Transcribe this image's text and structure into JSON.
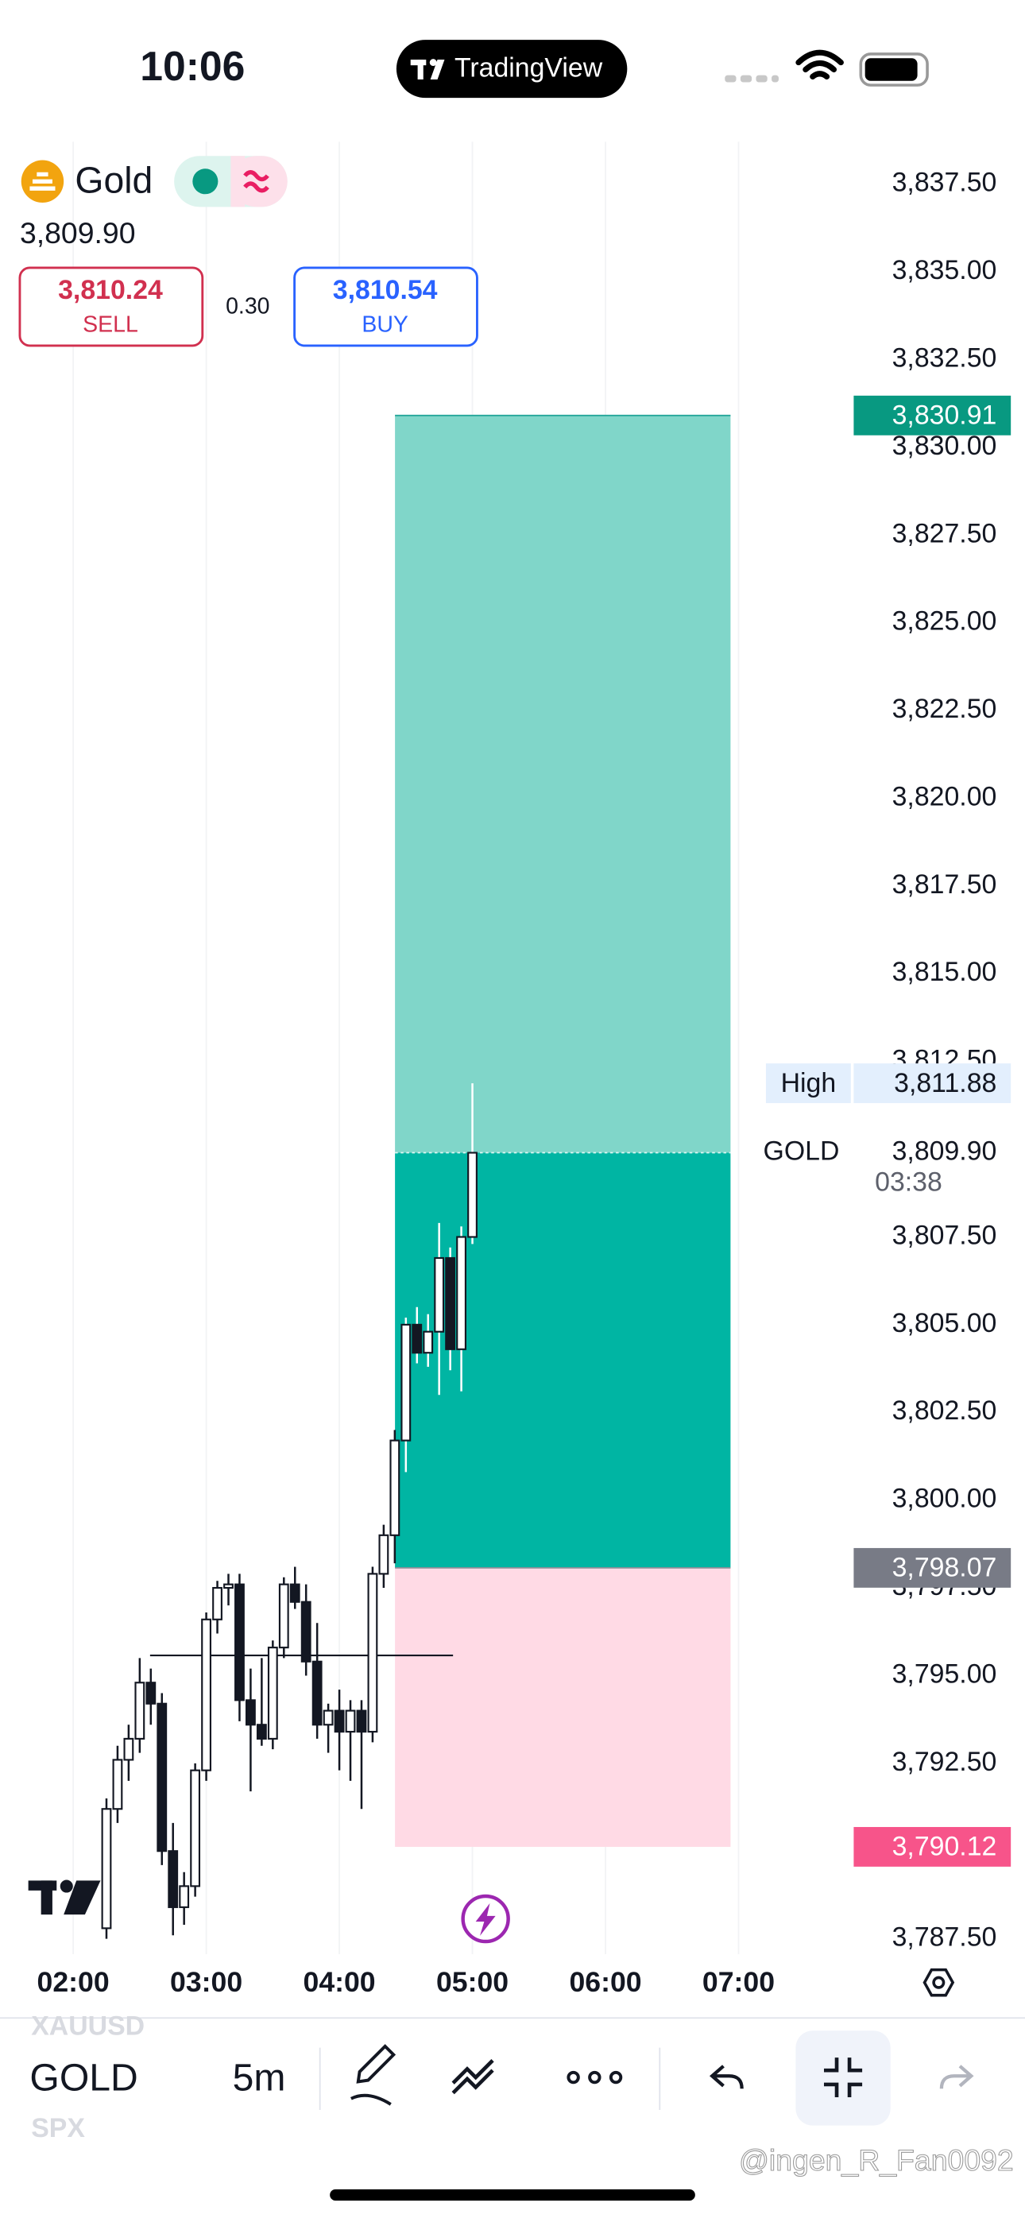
{
  "status_bar": {
    "time": "10:06",
    "app": "TradingView"
  },
  "header": {
    "symbol": "Gold",
    "last_price": "3,809.90",
    "sell": {
      "price": "3,810.24",
      "label": "SELL"
    },
    "spread": "0.30",
    "buy": {
      "price": "3,810.54",
      "label": "BUY"
    }
  },
  "chart_data": {
    "type": "candlestick",
    "x": [
      "02:15",
      "02:20",
      "02:25",
      "02:30",
      "02:35",
      "02:40",
      "02:45",
      "02:50",
      "02:55",
      "03:00",
      "03:05",
      "03:10",
      "03:15",
      "03:20",
      "03:25",
      "03:30",
      "03:35",
      "03:40",
      "03:45",
      "03:50",
      "03:55",
      "04:00",
      "04:05",
      "04:10",
      "04:15",
      "04:20",
      "04:25",
      "04:30",
      "04:35",
      "04:40",
      "04:45",
      "04:50",
      "04:55",
      "05:00"
    ],
    "open": [
      3787.8,
      3791.2,
      3792.6,
      3793.2,
      3794.8,
      3794.2,
      3790.0,
      3788.4,
      3789.0,
      3792.3,
      3796.6,
      3797.5,
      3797.6,
      3794.3,
      3793.6,
      3793.2,
      3795.8,
      3797.6,
      3797.1,
      3795.4,
      3793.6,
      3794.0,
      3793.4,
      3794.0,
      3793.4,
      3797.9,
      3799.0,
      3801.7,
      3805.0,
      3804.2,
      3804.8,
      3806.9,
      3804.3,
      3807.5
    ],
    "high": [
      3791.5,
      3793.0,
      3793.6,
      3795.5,
      3795.2,
      3794.5,
      3790.8,
      3789.4,
      3792.5,
      3796.8,
      3797.7,
      3797.9,
      3797.9,
      3795.2,
      3795.5,
      3796.0,
      3797.8,
      3798.1,
      3797.6,
      3796.5,
      3794.2,
      3794.6,
      3794.3,
      3794.3,
      3798.1,
      3799.3,
      3802.0,
      3805.2,
      3805.5,
      3805.3,
      3807.9,
      3807.2,
      3807.8,
      3811.88
    ],
    "low": [
      3787.5,
      3790.8,
      3792.0,
      3792.8,
      3793.6,
      3789.6,
      3787.6,
      3787.9,
      3788.7,
      3792.0,
      3796.2,
      3797.0,
      3793.7,
      3791.7,
      3793.0,
      3792.9,
      3795.5,
      3796.9,
      3795.0,
      3793.2,
      3792.8,
      3792.3,
      3792.0,
      3791.2,
      3793.1,
      3797.5,
      3798.2,
      3800.8,
      3803.9,
      3803.8,
      3803.0,
      3803.7,
      3803.1,
      3807.3
    ],
    "close": [
      3791.2,
      3792.6,
      3793.2,
      3794.8,
      3794.2,
      3790.0,
      3788.4,
      3789.0,
      3792.3,
      3796.6,
      3797.5,
      3797.6,
      3794.3,
      3793.6,
      3793.2,
      3795.8,
      3797.6,
      3797.1,
      3795.4,
      3793.6,
      3794.0,
      3793.4,
      3794.0,
      3793.4,
      3797.9,
      3799.0,
      3801.7,
      3805.0,
      3804.2,
      3804.8,
      3806.9,
      3804.3,
      3807.5,
      3809.9
    ],
    "xlim": [
      "01:27",
      "07:50"
    ],
    "xticks": [
      "02:00",
      "03:00",
      "04:00",
      "05:00",
      "06:00",
      "07:00"
    ],
    "ylim": [
      3787.06,
      3838.71
    ],
    "yticks": [
      {
        "value": 3837.5,
        "label": "3,837.50"
      },
      {
        "value": 3835,
        "label": "3,835.00"
      },
      {
        "value": 3832.5,
        "label": "3,832.50"
      },
      {
        "value": 3830,
        "label": "3,830.00"
      },
      {
        "value": 3827.5,
        "label": "3,827.50"
      },
      {
        "value": 3825,
        "label": "3,825.00"
      },
      {
        "value": 3822.5,
        "label": "3,822.50"
      },
      {
        "value": 3820,
        "label": "3,820.00"
      },
      {
        "value": 3817.5,
        "label": "3,817.50"
      },
      {
        "value": 3815,
        "label": "3,815.00"
      },
      {
        "value": 3812.5,
        "label": "3,812.50"
      },
      {
        "value": 3810,
        "label": "3,810.00"
      },
      {
        "value": 3807.5,
        "label": "3,807.50"
      },
      {
        "value": 3805,
        "label": "3,805.00"
      },
      {
        "value": 3802.5,
        "label": "3,802.50"
      },
      {
        "value": 3800,
        "label": "3,800.00"
      },
      {
        "value": 3797.5,
        "label": "3,797.50"
      },
      {
        "value": 3795,
        "label": "3,795.00"
      },
      {
        "value": 3792.5,
        "label": "3,792.50"
      },
      {
        "value": 3790,
        "label": "3,790.00"
      },
      {
        "value": 3787.5,
        "label": "3,787.50"
      }
    ],
    "grid": true,
    "position": {
      "target": {
        "value": 3830.91,
        "label": "3,830.91"
      },
      "entry": {
        "value": 3798.07,
        "label": "3,798.07"
      },
      "stop": {
        "value": 3790.12,
        "label": "3,790.12"
      }
    },
    "high_marker": {
      "name": "High",
      "value": 3811.88,
      "label": "3,811.88"
    },
    "last": {
      "name": "GOLD",
      "value": 3809.9,
      "label": "3,809.90",
      "countdown": "03:38"
    }
  },
  "toolbar": {
    "symbol": "GOLD",
    "interval": "5m",
    "compare_1": "XAUUSD",
    "compare_2": "SPX"
  },
  "watermark": "@ingen_R_Fan0092"
}
